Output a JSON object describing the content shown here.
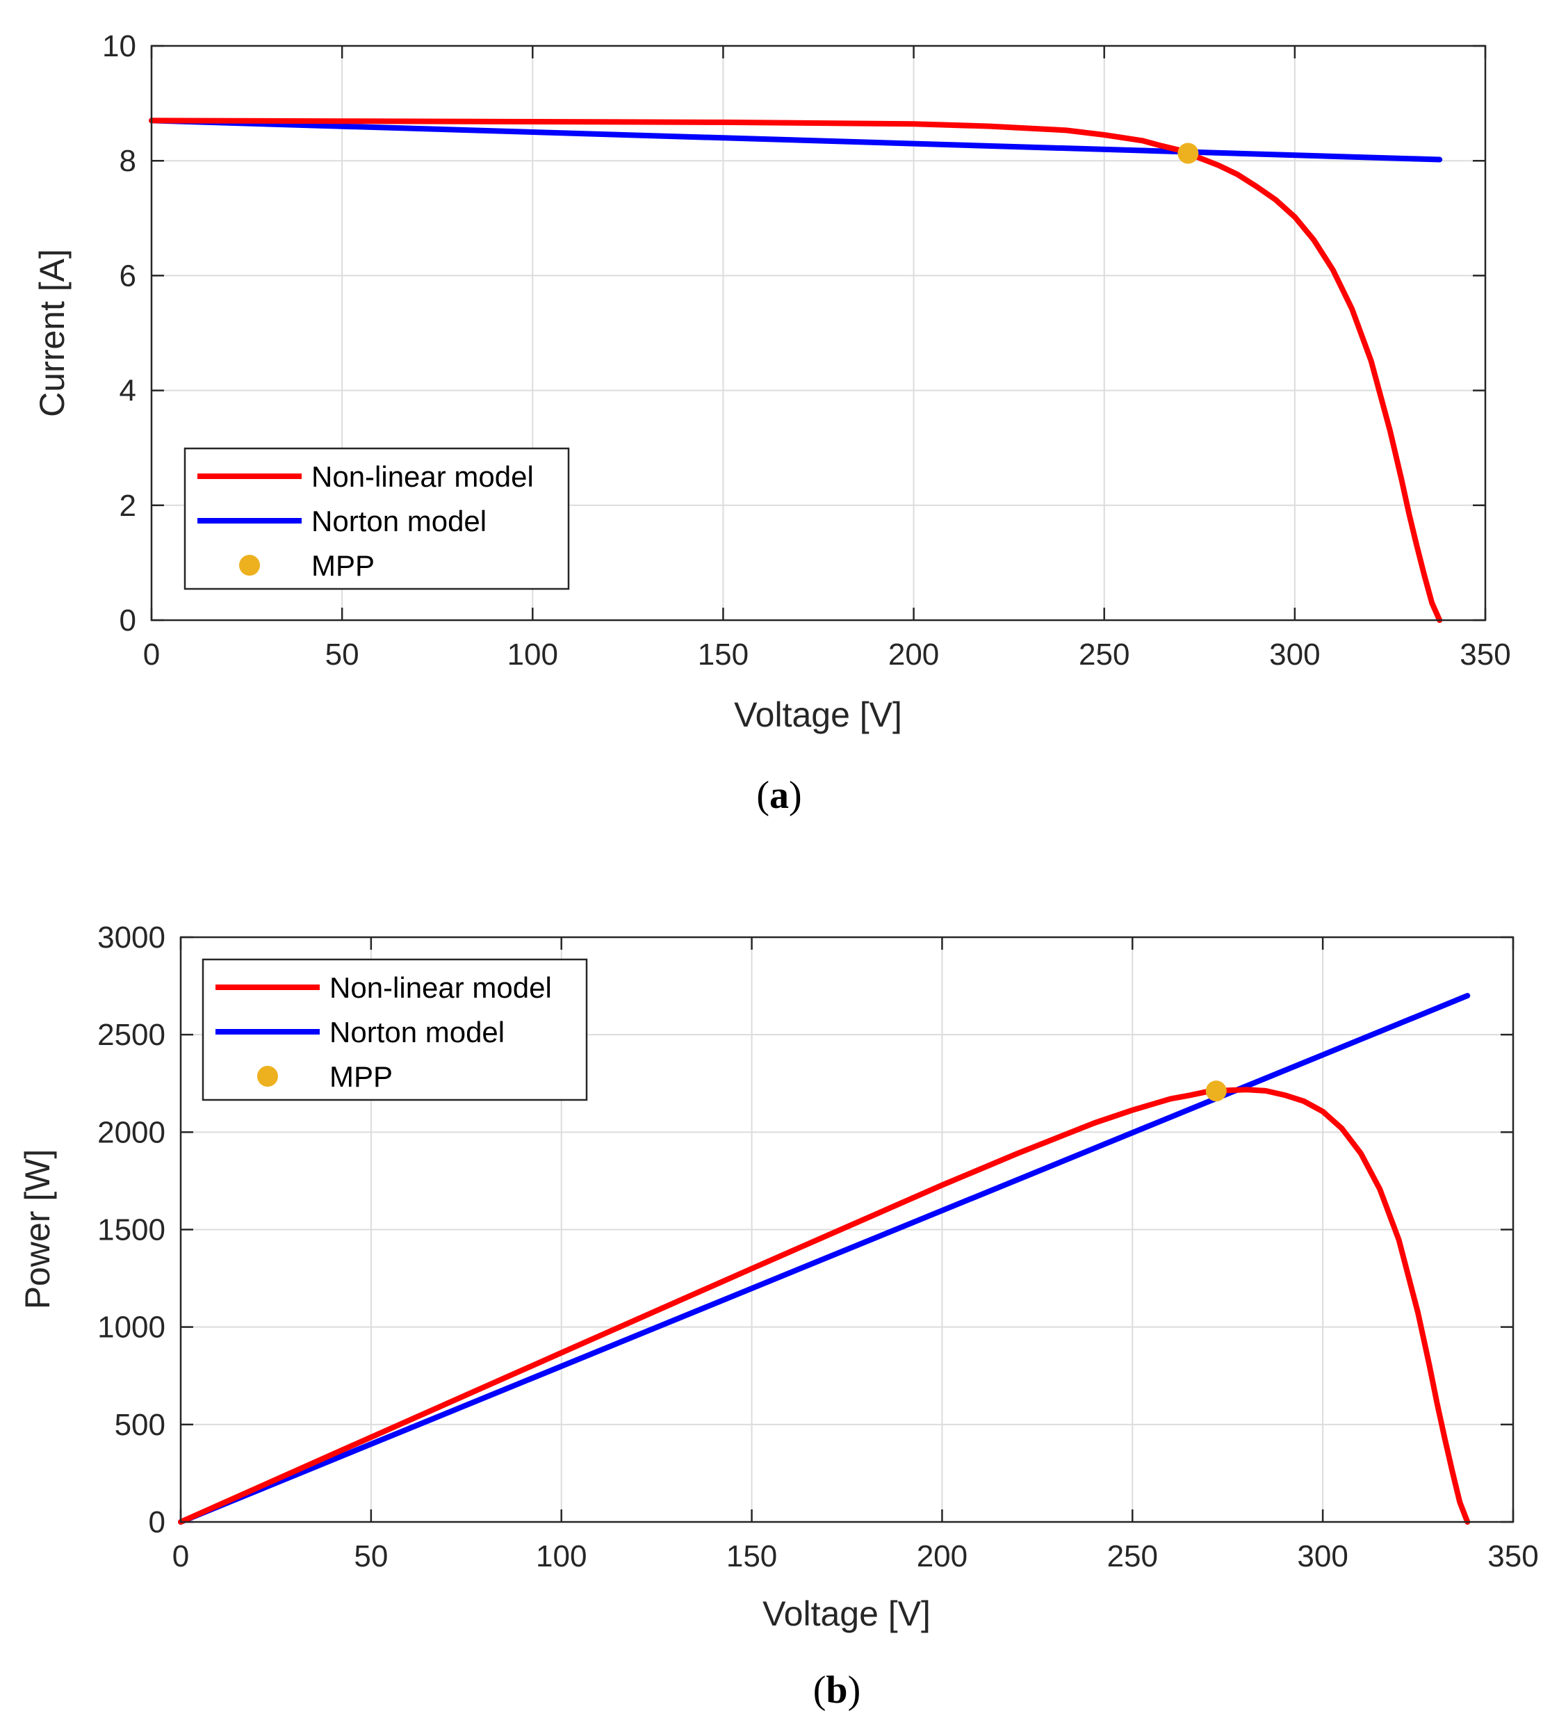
{
  "chart_data": [
    {
      "type": "line",
      "caption": "a",
      "xlabel": "Voltage [V]",
      "ylabel": "Current [A]",
      "xlim": [
        0,
        350
      ],
      "ylim": [
        0,
        10
      ],
      "xticks": [
        "0",
        "50",
        "100",
        "150",
        "200",
        "250",
        "300",
        "350"
      ],
      "yticks": [
        "0",
        "2",
        "4",
        "6",
        "8",
        "10"
      ],
      "grid": true,
      "legend_position": "bottom-left",
      "series": [
        {
          "name": "Non-linear model",
          "color": "#ff0000",
          "x": [
            0,
            50,
            100,
            150,
            200,
            220,
            240,
            250,
            260,
            265,
            270,
            272,
            275,
            280,
            285,
            290,
            295,
            300,
            305,
            310,
            315,
            320,
            325,
            328,
            330,
            332,
            334,
            336,
            338
          ],
          "y": [
            8.7,
            8.69,
            8.68,
            8.67,
            8.64,
            8.6,
            8.53,
            8.45,
            8.35,
            8.26,
            8.18,
            8.13,
            8.05,
            7.92,
            7.76,
            7.55,
            7.32,
            7.02,
            6.62,
            6.1,
            5.42,
            4.52,
            3.3,
            2.45,
            1.85,
            1.3,
            0.78,
            0.3,
            0.0
          ]
        },
        {
          "name": "Norton model",
          "color": "#0000ff",
          "x": [
            0,
            338
          ],
          "y": [
            8.7,
            8.02
          ]
        }
      ],
      "points": [
        {
          "name": "MPP",
          "color": "#edb120",
          "x": 272,
          "y": 8.13
        }
      ]
    },
    {
      "type": "line",
      "caption": "b",
      "xlabel": "Voltage [V]",
      "ylabel": "Power [W]",
      "xlim": [
        0,
        350
      ],
      "ylim": [
        0,
        3000
      ],
      "xticks": [
        "0",
        "50",
        "100",
        "150",
        "200",
        "250",
        "300",
        "350"
      ],
      "yticks": [
        "0",
        "500",
        "1000",
        "1500",
        "2000",
        "2500",
        "3000"
      ],
      "grid": true,
      "legend_position": "top-left",
      "series": [
        {
          "name": "Non-linear model",
          "color": "#ff0000",
          "x": [
            0,
            50,
            100,
            150,
            200,
            220,
            240,
            250,
            260,
            265,
            270,
            272,
            275,
            280,
            285,
            290,
            295,
            300,
            305,
            310,
            315,
            320,
            325,
            328,
            330,
            332,
            334,
            336,
            338
          ],
          "y": [
            0,
            435,
            868,
            1300,
            1728,
            1892,
            2047,
            2113,
            2171,
            2189,
            2209,
            2211,
            2214,
            2218,
            2212,
            2190,
            2159,
            2106,
            2019,
            1891,
            1707,
            1446,
            1073,
            804,
            610,
            432,
            261,
            101,
            0
          ]
        },
        {
          "name": "Norton model",
          "color": "#0000ff",
          "x": [
            0,
            338
          ],
          "y": [
            0,
            2700
          ]
        }
      ],
      "points": [
        {
          "name": "MPP",
          "color": "#edb120",
          "x": 272,
          "y": 2211
        }
      ]
    }
  ]
}
